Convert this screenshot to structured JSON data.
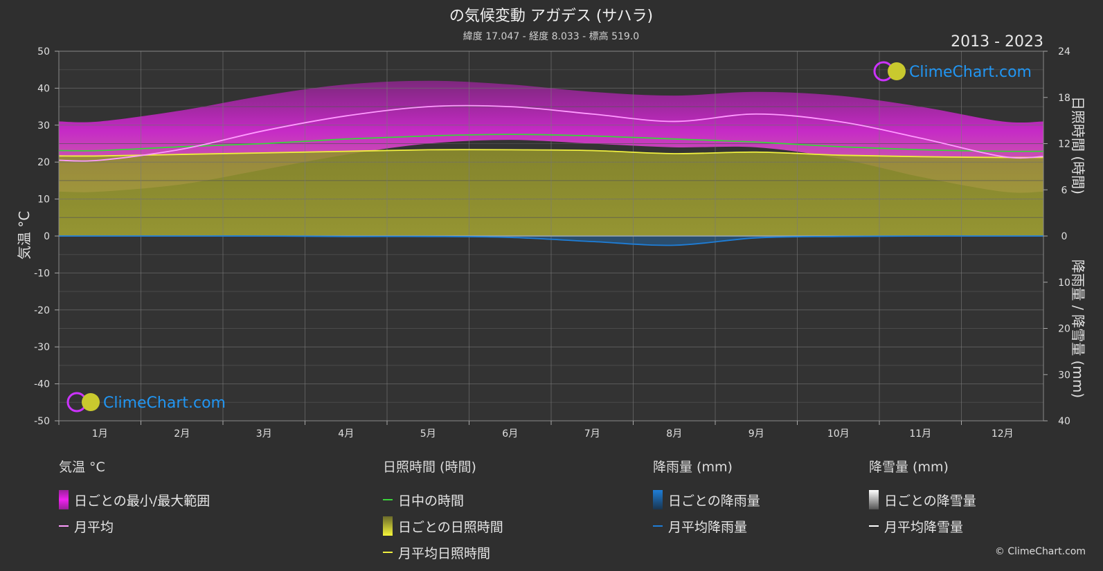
{
  "title": "の気候変動 アガデス (サハラ)",
  "subtitle": "緯度 17.047 - 経度 8.033 - 標高 519.0",
  "year_range": "2013 - 2023",
  "watermark": "ClimeChart.com",
  "copyright": "© ClimeChart.com",
  "colors": {
    "background": "#2f2f2f",
    "temp_range": "#d62ad6",
    "temp_range_low": "#e07aa8",
    "temp_avg": "#ff9cff",
    "daylight": "#3bd43b",
    "sunshine_fill": "#8c8c2a",
    "sunshine_avg": "#f0f040",
    "rain": "#1e7ed8",
    "snow": "#ffffff",
    "grid": "#6a6a6a"
  },
  "chart_data": {
    "type": "area",
    "months": [
      "1月",
      "2月",
      "3月",
      "4月",
      "5月",
      "6月",
      "7月",
      "8月",
      "9月",
      "10月",
      "11月",
      "12月"
    ],
    "y_left": {
      "label": "気温 °C",
      "range": [
        -50,
        50
      ],
      "ticks": [
        50,
        40,
        30,
        20,
        10,
        0,
        -10,
        -20,
        -30,
        -40,
        -50
      ]
    },
    "y_right_top": {
      "label": "日照時間 (時間)",
      "range": [
        0,
        24
      ],
      "ticks": [
        24,
        18,
        12,
        6,
        0
      ]
    },
    "y_right_bottom": {
      "label": "降雨量 / 降雪量 (mm)",
      "range": [
        0,
        40
      ],
      "ticks": [
        10,
        20,
        30,
        40
      ]
    },
    "series": [
      {
        "name": "日ごとの最小/最大範囲",
        "unit": "°C",
        "min": [
          12,
          14,
          18,
          22,
          25,
          26,
          25,
          24,
          24,
          21,
          16,
          12
        ],
        "max": [
          31,
          34,
          38,
          41,
          42,
          41,
          39,
          38,
          39,
          38,
          35,
          31
        ]
      },
      {
        "name": "月平均",
        "unit": "°C",
        "values": [
          20.5,
          23.5,
          28.5,
          32.5,
          35,
          35,
          33,
          31,
          33,
          31,
          26.5,
          21.5
        ]
      },
      {
        "name": "日中の時間",
        "unit": "時間",
        "values": [
          11.1,
          11.6,
          12.0,
          12.6,
          13.0,
          13.2,
          13.0,
          12.6,
          12.2,
          11.6,
          11.2,
          11.0
        ]
      },
      {
        "name": "月平均日照時間",
        "unit": "時間",
        "values": [
          10.4,
          10.6,
          10.8,
          11.0,
          11.2,
          11.2,
          11.1,
          10.7,
          10.9,
          10.5,
          10.3,
          10.2
        ]
      },
      {
        "name": "月平均降雨量",
        "unit": "mm",
        "values": [
          0,
          0,
          0,
          0.1,
          0.1,
          0.3,
          1.2,
          2.0,
          0.4,
          0.1,
          0,
          0
        ]
      },
      {
        "name": "月平均降雪量",
        "unit": "mm",
        "values": [
          0,
          0,
          0,
          0,
          0,
          0,
          0,
          0,
          0,
          0,
          0,
          0
        ]
      }
    ],
    "grid": true
  },
  "legend": {
    "temp": {
      "header": "気温 °C",
      "items": [
        "日ごとの最小/最大範囲",
        "月平均"
      ]
    },
    "sun": {
      "header": "日照時間 (時間)",
      "items": [
        "日中の時間",
        "日ごとの日照時間",
        "月平均日照時間"
      ]
    },
    "rain": {
      "header": "降雨量 (mm)",
      "items": [
        "日ごとの降雨量",
        "月平均降雨量"
      ]
    },
    "snow": {
      "header": "降雪量 (mm)",
      "items": [
        "日ごとの降雪量",
        "月平均降雪量"
      ]
    }
  }
}
